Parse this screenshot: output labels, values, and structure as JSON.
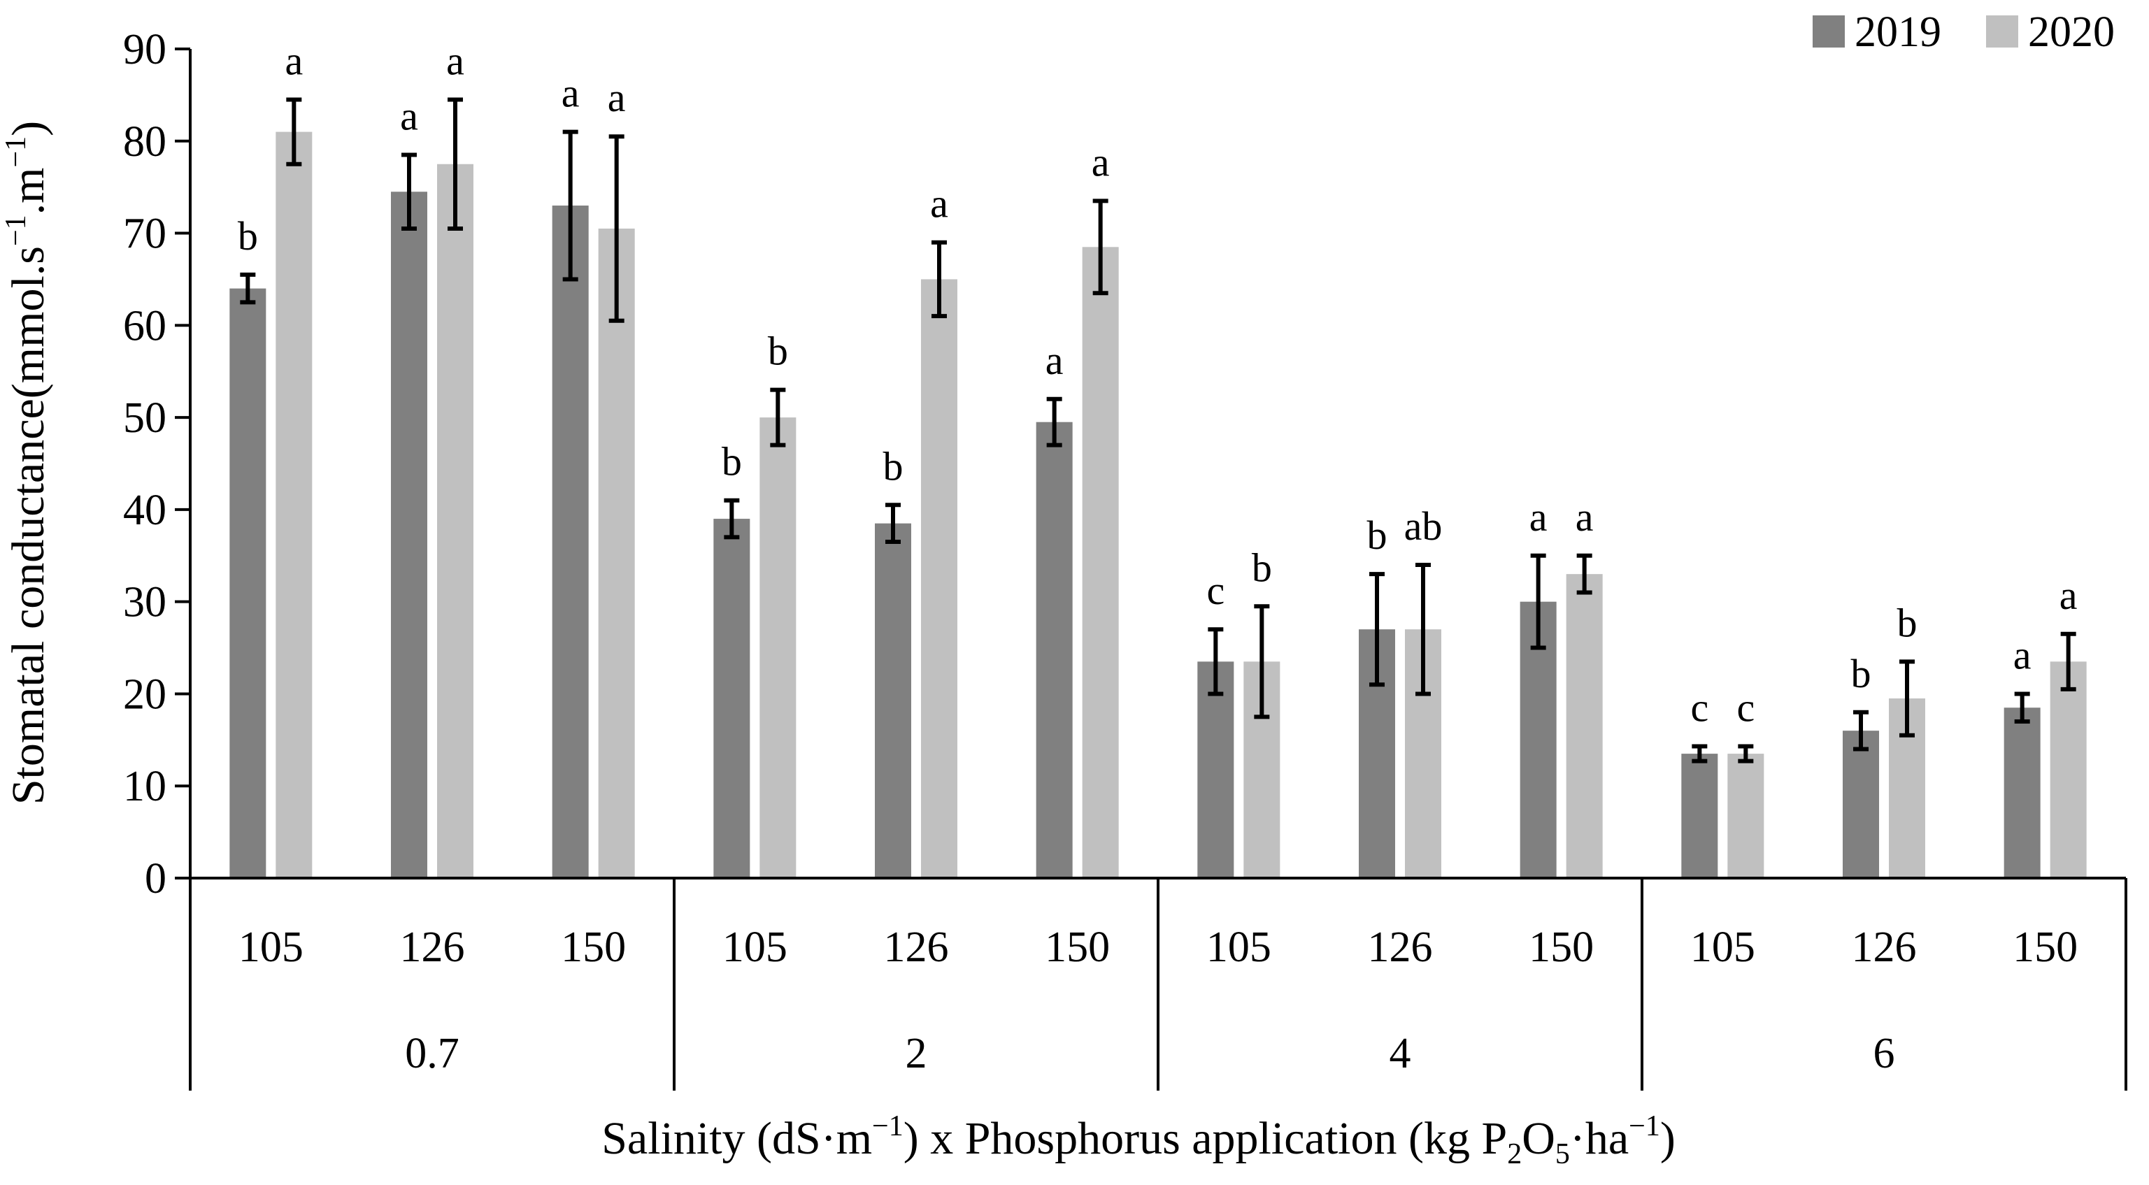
{
  "chart_data": {
    "type": "bar",
    "ylabel_parts": [
      "Stomatal conductance(mmol.s",
      "−1",
      ".m",
      "−1",
      ")"
    ],
    "xlabel_parts": [
      "Salinity (dS·m",
      "−1",
      ") x Phosphorus application (kg P",
      "2",
      "O",
      "5",
      "·ha",
      "−1",
      ")"
    ],
    "ylim": [
      0,
      90
    ],
    "yticks": [
      0,
      10,
      20,
      30,
      40,
      50,
      60,
      70,
      80,
      90
    ],
    "legend_position": "top-right",
    "groups": [
      {
        "label": "0.7",
        "categories": [
          "105",
          "126",
          "150"
        ]
      },
      {
        "label": "2",
        "categories": [
          "105",
          "126",
          "150"
        ]
      },
      {
        "label": "4",
        "categories": [
          "105",
          "126",
          "150"
        ]
      },
      {
        "label": "6",
        "categories": [
          "105",
          "126",
          "150"
        ]
      }
    ],
    "series": [
      {
        "name": "2019",
        "color": "#808080",
        "values": [
          64,
          74.5,
          73,
          39,
          38.5,
          49.5,
          23.5,
          27,
          30,
          13.5,
          16,
          18.5
        ],
        "errors": [
          1.5,
          4,
          8,
          2,
          2,
          2.5,
          3.5,
          6,
          5,
          0.8,
          2,
          1.5
        ],
        "letters": [
          "b",
          "a",
          "a",
          "b",
          "b",
          "a",
          "c",
          "b",
          "a",
          "c",
          "b",
          "a"
        ]
      },
      {
        "name": "2020",
        "color": "#c0c0c0",
        "values": [
          81,
          77.5,
          70.5,
          50,
          65,
          68.5,
          23.5,
          27,
          33,
          13.5,
          19.5,
          23.5
        ],
        "errors": [
          3.5,
          7,
          10,
          3,
          4,
          5,
          6,
          7,
          2,
          0.8,
          4,
          3
        ],
        "letters": [
          "a",
          "a",
          "a",
          "b",
          "a",
          "a",
          "b",
          "ab",
          "a",
          "c",
          "b",
          "a"
        ]
      }
    ]
  }
}
